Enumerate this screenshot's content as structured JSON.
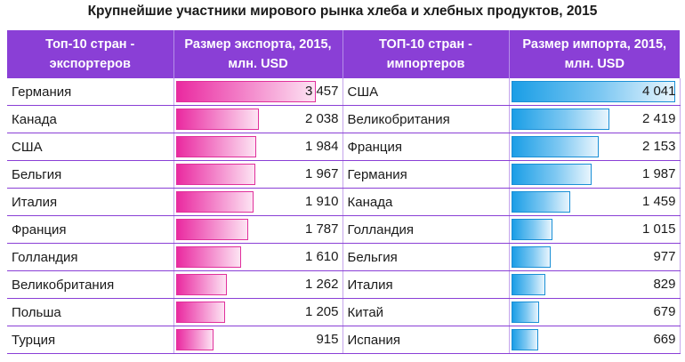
{
  "chart_data": {
    "type": "table",
    "title": "Крупнейшие участники мирового рынка хлеба и хлебных продуктов, 2015",
    "columns": [
      "Топ-10 стран - экспортеров",
      "Размер экспорта, 2015, млн. USD",
      "ТОП-10 стран - импортеров",
      "Размер импорта, 2015, млн. USD"
    ],
    "exporters": [
      {
        "country": "Германия",
        "value": 3457,
        "label": "3 457"
      },
      {
        "country": "Канада",
        "value": 2038,
        "label": "2 038"
      },
      {
        "country": "США",
        "value": 1984,
        "label": "1 984"
      },
      {
        "country": "Бельгия",
        "value": 1967,
        "label": "1 967"
      },
      {
        "country": "Италия",
        "value": 1910,
        "label": "1 910"
      },
      {
        "country": "Франция",
        "value": 1787,
        "label": "1 787"
      },
      {
        "country": "Голландия",
        "value": 1610,
        "label": "1 610"
      },
      {
        "country": "Великобритания",
        "value": 1262,
        "label": "1 262"
      },
      {
        "country": "Польша",
        "value": 1205,
        "label": "1 205"
      },
      {
        "country": "Турция",
        "value": 915,
        "label": "915"
      }
    ],
    "importers": [
      {
        "country": "США",
        "value": 4041,
        "label": "4 041"
      },
      {
        "country": "Великобритания",
        "value": 2419,
        "label": "2 419"
      },
      {
        "country": "Франция",
        "value": 2153,
        "label": "2 153"
      },
      {
        "country": "Германия",
        "value": 1987,
        "label": "1 987"
      },
      {
        "country": "Канада",
        "value": 1459,
        "label": "1 459"
      },
      {
        "country": "Голландия",
        "value": 1015,
        "label": "1 015"
      },
      {
        "country": "Бельгия",
        "value": 977,
        "label": "977"
      },
      {
        "country": "Италия",
        "value": 829,
        "label": "829"
      },
      {
        "country": "Китай",
        "value": 679,
        "label": "679"
      },
      {
        "country": "Испания",
        "value": 669,
        "label": "669"
      }
    ],
    "colors": {
      "header": "#8a3fd6",
      "export_bar": "#ea2aa0",
      "import_bar": "#1a9ee6"
    }
  }
}
